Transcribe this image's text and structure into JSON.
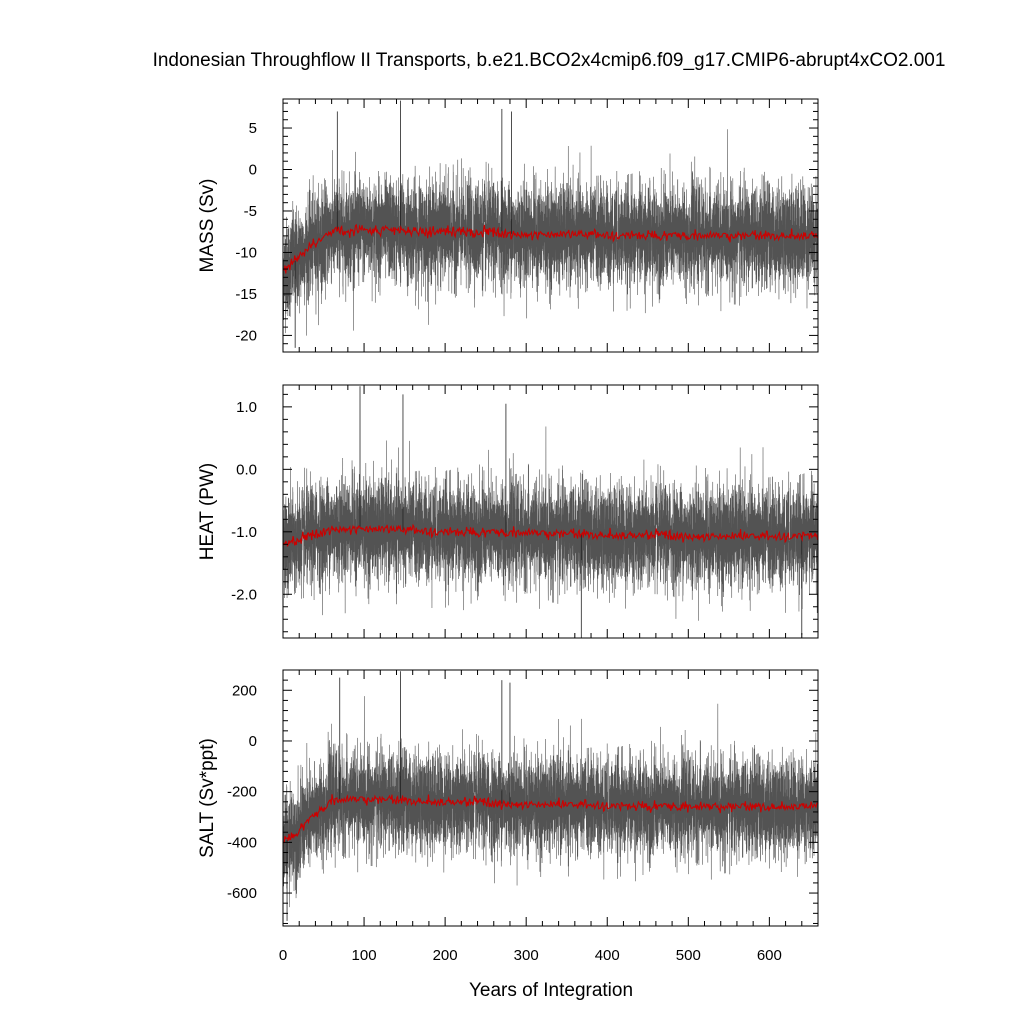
{
  "chart_data": {
    "type": "line",
    "title": "Indonesian Throughflow II Transports, b.e21.BCO2x4cmip6.f09_g17.CMIP6-abrupt4xCO2.001",
    "xlabel": "Years of Integration",
    "xlim": [
      0,
      660
    ],
    "xticks": [
      0,
      100,
      200,
      300,
      400,
      500,
      600
    ],
    "xtick_labels": [
      "0",
      "100",
      "200",
      "300",
      "400",
      "500",
      "600"
    ],
    "raw_color": "#000000",
    "mean_color": "#cc0000",
    "panels": [
      {
        "ylabel": "MASS (Sv)",
        "ylim": [
          -22,
          8.5
        ],
        "yticks": [
          5,
          0,
          -5,
          -10,
          -15,
          -20
        ],
        "ytick_labels": [
          "5",
          "0",
          "-5",
          "-10",
          "-15",
          "-20"
        ],
        "early_level": -12,
        "late_level": -7.8,
        "noise_sd": 3.0,
        "key_points": [
          [
            0,
            -12
          ],
          [
            10,
            -11.5
          ],
          [
            30,
            -9.5
          ],
          [
            60,
            -7.5
          ],
          [
            100,
            -7.3
          ],
          [
            200,
            -7.5
          ],
          [
            300,
            -7.8
          ],
          [
            400,
            -7.9
          ],
          [
            500,
            -8.0
          ],
          [
            600,
            -8.0
          ],
          [
            660,
            -7.9
          ]
        ],
        "peaks": [
          [
            145,
            8.3
          ],
          [
            270,
            7.3
          ],
          [
            282,
            7.0
          ],
          [
            67,
            7.0
          ],
          [
            15,
            -21.5
          ]
        ]
      },
      {
        "ylabel": "HEAT (PW)",
        "ylim": [
          -2.7,
          1.35
        ],
        "yticks": [
          1.0,
          0.0,
          -1.0,
          -2.0
        ],
        "ytick_labels": [
          "1.0",
          "0.0",
          "-1.0",
          "-2.0"
        ],
        "early_level": -1.2,
        "late_level": -1.05,
        "noise_sd": 0.4,
        "key_points": [
          [
            0,
            -1.2
          ],
          [
            20,
            -1.15
          ],
          [
            60,
            -0.95
          ],
          [
            100,
            -0.95
          ],
          [
            200,
            -1.0
          ],
          [
            300,
            -1.02
          ],
          [
            400,
            -1.05
          ],
          [
            500,
            -1.07
          ],
          [
            600,
            -1.08
          ],
          [
            660,
            -1.05
          ]
        ],
        "peaks": [
          [
            95,
            1.33
          ],
          [
            148,
            1.2
          ],
          [
            275,
            1.05
          ],
          [
            368,
            -2.7
          ],
          [
            640,
            -2.65
          ]
        ]
      },
      {
        "ylabel": "SALT (Sv*ppt)",
        "ylim": [
          -730,
          280
        ],
        "yticks": [
          200,
          0,
          -200,
          -400,
          -600
        ],
        "ytick_labels": [
          "200",
          "0",
          "-200",
          "-400",
          "-600"
        ],
        "early_level": -400,
        "late_level": -255,
        "noise_sd": 95,
        "key_points": [
          [
            0,
            -400
          ],
          [
            10,
            -380
          ],
          [
            30,
            -320
          ],
          [
            60,
            -235
          ],
          [
            100,
            -230
          ],
          [
            200,
            -240
          ],
          [
            300,
            -250
          ],
          [
            400,
            -255
          ],
          [
            500,
            -260
          ],
          [
            600,
            -260
          ],
          [
            660,
            -255
          ]
        ],
        "peaks": [
          [
            145,
            275
          ],
          [
            70,
            250
          ],
          [
            270,
            240
          ],
          [
            280,
            230
          ],
          [
            5,
            -710
          ]
        ]
      }
    ]
  }
}
